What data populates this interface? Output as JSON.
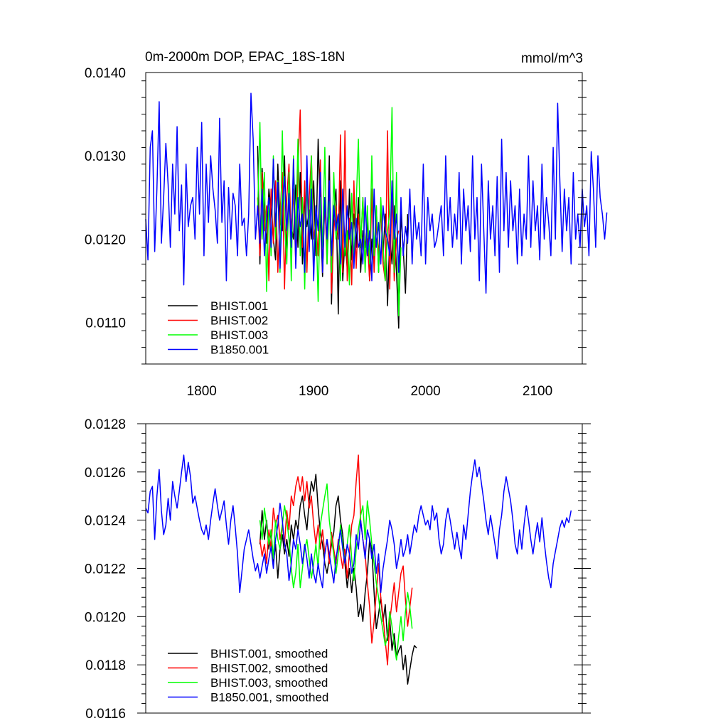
{
  "chart_data": [
    {
      "type": "line",
      "title": "0m-2000m DOP, EPAC_18S-18N",
      "units": "mmol/m^3",
      "xlim": [
        1750,
        2140
      ],
      "ylim": [
        0.0105,
        0.014
      ],
      "x_ticks": [
        1800,
        1900,
        2000,
        2100
      ],
      "x_tick_labels": [
        "1800",
        "1900",
        "2000",
        "2100"
      ],
      "y_ticks": [
        0.011,
        0.012,
        0.013,
        0.014
      ],
      "y_tick_labels": [
        "0.0110",
        "0.0120",
        "0.0130",
        "0.0140"
      ],
      "grid": false,
      "legend_position": "bottom-left",
      "series": [
        {
          "name": "BHIST.001",
          "color": "#000000",
          "x_start": 1850,
          "step": 2,
          "values": [
            0.01312,
            0.0117,
            0.01285,
            0.0123,
            0.01195,
            0.0126,
            0.01235,
            0.012,
            0.01175,
            0.0129,
            0.0122,
            0.0121,
            0.013,
            0.0118,
            0.0125,
            0.01215,
            0.012,
            0.01265,
            0.0119,
            0.0128,
            0.0117,
            0.0125,
            0.01215,
            0.01235,
            0.012,
            0.0127,
            0.0118,
            0.0132,
            0.0123,
            0.01155,
            0.0125,
            0.01185,
            0.013,
            0.01122,
            0.0123,
            0.0126,
            0.0111,
            0.0127,
            0.0115,
            0.012,
            0.01165,
            0.0126,
            0.01175,
            0.0123,
            0.0119,
            0.0125,
            0.0116,
            0.0121,
            0.0119,
            0.01225,
            0.0115,
            0.012,
            0.0117,
            0.0124,
            0.0116,
            0.0124,
            0.0118,
            0.0123,
            0.0112,
            0.01205,
            0.0117,
            0.0124,
            0.0116,
            0.01093,
            0.0123,
            0.0119,
            0.01135,
            0.0123
          ]
        },
        {
          "name": "BHIST.002",
          "color": "#ff0000",
          "x_start": 1850,
          "step": 2,
          "values": [
            0.0125,
            0.0118,
            0.0128,
            0.0121,
            0.0124,
            0.0115,
            0.0126,
            0.01195,
            0.0127,
            0.0116,
            0.0123,
            0.0128,
            0.0114,
            0.0125,
            0.0129,
            0.012,
            0.0126,
            0.0117,
            0.01285,
            0.01355,
            0.0119,
            0.0127,
            0.0116,
            0.0125,
            0.013,
            0.012,
            0.0122,
            0.0118,
            0.01295,
            0.0116,
            0.0125,
            0.0117,
            0.0127,
            0.01135,
            0.0121,
            0.0124,
            0.012,
            0.01325,
            0.0116,
            0.0133,
            0.0115,
            0.01225,
            0.01145,
            0.0127,
            0.01165,
            0.0123,
            0.0119,
            0.0125,
            0.0117,
            0.012,
            0.0115,
            0.0126,
            0.0116,
            0.0122,
            0.0118,
            0.0124,
            0.0117,
            0.0115,
            0.0133,
            0.0114,
            0.0126,
            0.0115,
            0.012,
            0.0121
          ]
        },
        {
          "name": "BHIST.003",
          "color": "#00ff00",
          "x_start": 1850,
          "step": 2,
          "values": [
            0.0123,
            0.0134,
            0.012,
            0.0128,
            0.01137,
            0.0125,
            0.0118,
            0.013,
            0.012,
            0.0127,
            0.0116,
            0.0133,
            0.0122,
            0.0117,
            0.0128,
            0.0115,
            0.013,
            0.012,
            0.0132,
            0.0118,
            0.0125,
            0.0114,
            0.0127,
            0.0119,
            0.013,
            0.0116,
            0.0123,
            0.01125,
            0.0125,
            0.0119,
            0.0131,
            0.0117,
            0.01245,
            0.0116,
            0.0128,
            0.012,
            0.0123,
            0.0115,
            0.0126,
            0.0118,
            0.0121,
            0.01145,
            0.01255,
            0.01175,
            0.0124,
            0.0132,
            0.0119,
            0.0125,
            0.0116,
            0.0124,
            0.0117,
            0.013,
            0.0118,
            0.0124,
            0.0116,
            0.0125,
            0.0119,
            0.0115,
            0.0121,
            0.0123,
            0.01358,
            0.0116,
            0.0128,
            0.01108,
            0.0119
          ]
        },
        {
          "name": "B1850.001",
          "color": "#0000ff",
          "x_start": 1750,
          "step": 2,
          "values": [
            0.01224,
            0.01175,
            0.0131,
            0.0133,
            0.01185,
            0.0126,
            0.01365,
            0.01195,
            0.0125,
            0.01315,
            0.01265,
            0.0119,
            0.0129,
            0.0123,
            0.01335,
            0.0121,
            0.01265,
            0.01145,
            0.0129,
            0.01215,
            0.0124,
            0.0125,
            0.012,
            0.0131,
            0.0123,
            0.0134,
            0.0118,
            0.0129,
            0.0122,
            0.013,
            0.0126,
            0.01235,
            0.01195,
            0.01345,
            0.0122,
            0.0127,
            0.0115,
            0.01262,
            0.012,
            0.01255,
            0.0124,
            0.0118,
            0.0129,
            0.01216,
            0.01225,
            0.0118,
            0.0123,
            0.01375,
            0.0132,
            0.012,
            0.0124,
            0.01195,
            0.0126,
            0.0118,
            0.01225,
            0.0125,
            0.0119,
            0.01296,
            0.01215,
            0.01268,
            0.01165,
            0.0124,
            0.01275,
            0.0121,
            0.01255,
            0.0119,
            0.01296,
            0.01165,
            0.0125,
            0.01215,
            0.0123,
            0.0116,
            0.013,
            0.01185,
            0.0126,
            0.0115,
            0.0124,
            0.0121,
            0.0128,
            0.0116,
            0.0125,
            0.012,
            0.0127,
            0.0118,
            0.0124,
            0.0121,
            0.0123,
            0.0117,
            0.0126,
            0.0119,
            0.0124,
            0.012,
            0.0122,
            0.01165,
            0.01225,
            0.0119,
            0.012,
            0.0117,
            0.0125,
            0.0118,
            0.0121,
            0.0115,
            0.0126,
            0.0119,
            0.0122,
            0.0117,
            0.0124,
            0.0121,
            0.012,
            0.0118,
            0.0127,
            0.012,
            0.0123,
            0.0116,
            0.0125,
            0.0118,
            0.01215,
            0.01195,
            0.0126,
            0.0117,
            0.0124,
            0.012,
            0.0122,
            0.0118,
            0.0129,
            0.0117,
            0.0125,
            0.0121,
            0.0123,
            0.0119,
            0.012,
            0.0122,
            0.0124,
            0.0118,
            0.013,
            0.0121,
            0.0125,
            0.0119,
            0.0123,
            0.012,
            0.0128,
            0.0117,
            0.0126,
            0.0121,
            0.0124,
            0.01185,
            0.013,
            0.012,
            0.0125,
            0.0115,
            0.0129,
            0.0121,
            0.01135,
            0.0127,
            0.012,
            0.0124,
            0.0118,
            0.01275,
            0.0116,
            0.0132,
            0.0121,
            0.0128,
            0.0119,
            0.0127,
            0.0121,
            0.0124,
            0.0117,
            0.0126,
            0.0118,
            0.0123,
            0.012,
            0.013,
            0.0119,
            0.0127,
            0.0121,
            0.0124,
            0.01175,
            0.0129,
            0.012,
            0.0125,
            0.0122,
            0.0118,
            0.0131,
            0.012,
            0.01363,
            0.0127,
            0.01185,
            0.0126,
            0.0121,
            0.0125,
            0.0117,
            0.0128,
            0.012,
            0.0123,
            0.0119,
            0.0126,
            0.01215,
            0.0124,
            0.0118,
            0.01305,
            0.0126,
            0.0119,
            0.013,
            0.0125,
            0.0123,
            0.012,
            0.01232
          ]
        }
      ],
      "legend_entries": [
        "BHIST.001",
        "BHIST.002",
        "BHIST.003",
        "B1850.001"
      ]
    },
    {
      "type": "line",
      "title": "",
      "xlim": [
        1750,
        2140
      ],
      "ylim": [
        0.0116,
        0.0128
      ],
      "x_ticks": [
        1800,
        1900,
        2000,
        2100
      ],
      "y_ticks": [
        0.0116,
        0.0118,
        0.012,
        0.0122,
        0.0124,
        0.0126,
        0.0128
      ],
      "y_tick_labels": [
        "0.0116",
        "0.0118",
        "0.0120",
        "0.0122",
        "0.0124",
        "0.0126",
        "0.0128"
      ],
      "grid": false,
      "legend_position": "bottom-left",
      "series": [
        {
          "name": "BHIST.001, smoothed",
          "color": "#000000",
          "x_start": 1852,
          "step": 2,
          "values": [
            0.0123,
            0.01244,
            0.01232,
            0.0124,
            0.01228,
            0.01236,
            0.01222,
            0.0123,
            0.01216,
            0.01228,
            0.01234,
            0.01226,
            0.01232,
            0.01225,
            0.01238,
            0.01232,
            0.0124,
            0.01236,
            0.01246,
            0.0125,
            0.01242,
            0.01236,
            0.01248,
            0.01256,
            0.01252,
            0.01259,
            0.01245,
            0.01235,
            0.0123,
            0.01222,
            0.01218,
            0.01224,
            0.0123,
            0.01235,
            0.01246,
            0.0125,
            0.0124,
            0.01234,
            0.01222,
            0.01212,
            0.0122,
            0.0121,
            0.0122,
            0.01212,
            0.012,
            0.01205,
            0.01198,
            0.0121,
            0.01218,
            0.01232,
            0.01228,
            0.0121,
            0.01195,
            0.01201,
            0.01208,
            0.01198,
            0.01205,
            0.0119,
            0.01199,
            0.01186,
            0.01193,
            0.01183,
            0.01186,
            0.01188,
            0.01178,
            0.01184,
            0.01172,
            0.01178,
            0.01184,
            0.01188,
            0.01187
          ]
        },
        {
          "name": "BHIST.002, smoothed",
          "color": "#ff0000",
          "x_start": 1852,
          "step": 2,
          "values": [
            0.01232,
            0.01225,
            0.0123,
            0.01222,
            0.01236,
            0.01228,
            0.01245,
            0.01238,
            0.01242,
            0.01232,
            0.01238,
            0.0123,
            0.01244,
            0.01236,
            0.0125,
            0.01246,
            0.01254,
            0.01258,
            0.01252,
            0.01258,
            0.01248,
            0.01256,
            0.01245,
            0.0125,
            0.01238,
            0.0123,
            0.01238,
            0.01228,
            0.01236,
            0.01226,
            0.01232,
            0.01222,
            0.01235,
            0.01228,
            0.01222,
            0.01232,
            0.01226,
            0.0122,
            0.01228,
            0.01216,
            0.01226,
            0.01238,
            0.01242,
            0.01256,
            0.01267,
            0.0124,
            0.01232,
            0.01226,
            0.01214,
            0.01204,
            0.01189,
            0.01198,
            0.0121,
            0.01222,
            0.01208,
            0.012,
            0.0119,
            0.0118,
            0.01198,
            0.01206,
            0.01214,
            0.01202,
            0.0121,
            0.01218,
            0.01221,
            0.01207,
            0.01196,
            0.01204,
            0.01212
          ]
        },
        {
          "name": "BHIST.003, smoothed",
          "color": "#00ff00",
          "x_start": 1852,
          "step": 2,
          "values": [
            0.0124,
            0.01232,
            0.01245,
            0.01238,
            0.0123,
            0.01236,
            0.01224,
            0.0124,
            0.01232,
            0.01228,
            0.01238,
            0.01246,
            0.0124,
            0.01232,
            0.0122,
            0.01212,
            0.01218,
            0.0123,
            0.01212,
            0.0122,
            0.01228,
            0.01232,
            0.01224,
            0.01216,
            0.01222,
            0.0123,
            0.0122,
            0.01238,
            0.01244,
            0.0125,
            0.01255,
            0.0124,
            0.01232,
            0.01226,
            0.01218,
            0.01226,
            0.01238,
            0.0123,
            0.01222,
            0.0123,
            0.01238,
            0.01224,
            0.01215,
            0.01228,
            0.01236,
            0.01242,
            0.01246,
            0.01232,
            0.01248,
            0.0124,
            0.0123,
            0.01222,
            0.01214,
            0.01208,
            0.012,
            0.01194,
            0.01188,
            0.01192,
            0.01202,
            0.01196,
            0.01188,
            0.01182,
            0.01192,
            0.012,
            0.0119,
            0.01202,
            0.0121,
            0.01204,
            0.01195
          ]
        },
        {
          "name": "B1850.001, smoothed",
          "color": "#0000ff",
          "x_start": 1750,
          "step": 2,
          "values": [
            0.01245,
            0.01243,
            0.01252,
            0.01254,
            0.01232,
            0.0125,
            0.01261,
            0.01244,
            0.01234,
            0.01238,
            0.01249,
            0.0124,
            0.01256,
            0.0125,
            0.01245,
            0.01252,
            0.0126,
            0.01267,
            0.01256,
            0.01264,
            0.01258,
            0.01247,
            0.0125,
            0.01245,
            0.0124,
            0.01236,
            0.01234,
            0.01238,
            0.01232,
            0.0124,
            0.01247,
            0.01253,
            0.01246,
            0.0124,
            0.01244,
            0.01248,
            0.01238,
            0.0123,
            0.0124,
            0.01246,
            0.01237,
            0.01226,
            0.0121,
            0.01219,
            0.01228,
            0.01232,
            0.01236,
            0.0123,
            0.01224,
            0.01219,
            0.01222,
            0.01216,
            0.01221,
            0.01226,
            0.01218,
            0.01224,
            0.01229,
            0.0122,
            0.01232,
            0.01238,
            0.01247,
            0.0124,
            0.0123,
            0.01226,
            0.01215,
            0.01222,
            0.01232,
            0.01228,
            0.01236,
            0.0123,
            0.01222,
            0.0123,
            0.01224,
            0.01216,
            0.01226,
            0.01218,
            0.01214,
            0.01222,
            0.01216,
            0.01212,
            0.01226,
            0.01232,
            0.01226,
            0.0122,
            0.01214,
            0.01224,
            0.0123,
            0.01236,
            0.01228,
            0.01222,
            0.0123,
            0.01226,
            0.01218,
            0.01222,
            0.01234,
            0.01228,
            0.0124,
            0.01232,
            0.01224,
            0.01236,
            0.01232,
            0.01224,
            0.0123,
            0.01218,
            0.01226,
            0.0121,
            0.0122,
            0.01226,
            0.01232,
            0.0124,
            0.01236,
            0.0123,
            0.0122,
            0.01225,
            0.01232,
            0.01225,
            0.01228,
            0.01234,
            0.01226,
            0.01232,
            0.01238,
            0.01235,
            0.01242,
            0.01246,
            0.01242,
            0.01238,
            0.0124,
            0.01236,
            0.01246,
            0.0124,
            0.01243,
            0.01232,
            0.01226,
            0.0123,
            0.0124,
            0.01245,
            0.0124,
            0.01234,
            0.01228,
            0.01235,
            0.01229,
            0.01224,
            0.01238,
            0.01232,
            0.01242,
            0.01252,
            0.01259,
            0.01265,
            0.01258,
            0.01262,
            0.01255,
            0.01248,
            0.0124,
            0.01234,
            0.01242,
            0.01236,
            0.0123,
            0.01224,
            0.01236,
            0.01242,
            0.01252,
            0.01258,
            0.01253,
            0.01248,
            0.0124,
            0.0123,
            0.01226,
            0.01236,
            0.01228,
            0.01238,
            0.01246,
            0.0124,
            0.01232,
            0.01226,
            0.01233,
            0.01239,
            0.01231,
            0.01241,
            0.01231,
            0.01223,
            0.01216,
            0.01212,
            0.01222,
            0.01227,
            0.01232,
            0.01237,
            0.0124,
            0.01237,
            0.01241,
            0.01239,
            0.01244
          ]
        }
      ],
      "legend_entries": [
        "BHIST.001, smoothed",
        "BHIST.002, smoothed",
        "BHIST.003, smoothed",
        "B1850.001, smoothed"
      ]
    }
  ]
}
